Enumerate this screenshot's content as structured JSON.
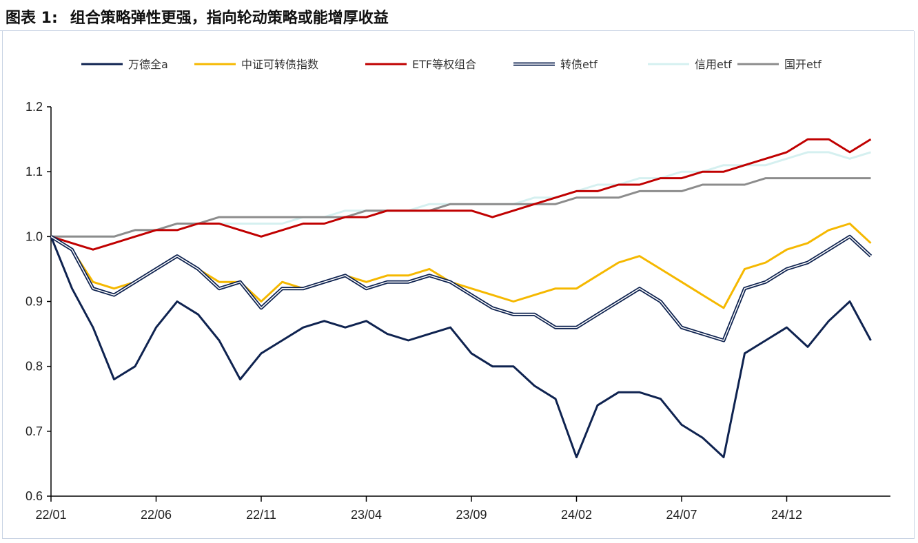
{
  "figure": {
    "label": "图表 1:",
    "title": "组合策略弹性更强，指向轮动策略或能增厚收益"
  },
  "chart_data": {
    "type": "line",
    "title": "组合策略弹性更强，指向轮动策略或能增厚收益",
    "xlabel": "",
    "ylabel": "",
    "x_ticks": [
      "22/01",
      "22/06",
      "22/11",
      "23/04",
      "23/09",
      "24/02",
      "24/07",
      "24/12"
    ],
    "ylim": [
      0.6,
      1.2
    ],
    "y_ticks": [
      0.6,
      0.7,
      0.8,
      0.9,
      1.0,
      1.1,
      1.2
    ],
    "y_tick_labels": [
      "0.6",
      "0.7",
      "0.8",
      "0.9",
      "1.0",
      "1.1",
      "1.2"
    ],
    "grid": false,
    "legend_position": "top",
    "x_months": [
      "22/01",
      "22/02",
      "22/03",
      "22/04",
      "22/05",
      "22/06",
      "22/07",
      "22/08",
      "22/09",
      "22/10",
      "22/11",
      "22/12",
      "23/01",
      "23/02",
      "23/03",
      "23/04",
      "23/05",
      "23/06",
      "23/07",
      "23/08",
      "23/09",
      "23/10",
      "23/11",
      "23/12",
      "24/01",
      "24/02",
      "24/03",
      "24/04",
      "24/05",
      "24/06",
      "24/07",
      "24/08",
      "24/09",
      "24/10",
      "24/11",
      "24/12",
      "25/01",
      "25/02",
      "25/03",
      "25/04"
    ],
    "series": [
      {
        "name": "万德全a",
        "color": "#0f2350",
        "style": "solid",
        "values": [
          1.0,
          0.92,
          0.86,
          0.78,
          0.8,
          0.86,
          0.9,
          0.88,
          0.84,
          0.78,
          0.82,
          0.84,
          0.86,
          0.87,
          0.86,
          0.87,
          0.85,
          0.84,
          0.85,
          0.86,
          0.82,
          0.8,
          0.8,
          0.77,
          0.75,
          0.66,
          0.74,
          0.76,
          0.76,
          0.75,
          0.71,
          0.69,
          0.66,
          0.82,
          0.84,
          0.86,
          0.83,
          0.87,
          0.9,
          0.84
        ]
      },
      {
        "name": "中证可转债指数",
        "color": "#f5b800",
        "style": "solid",
        "values": [
          1.0,
          0.98,
          0.93,
          0.92,
          0.93,
          0.95,
          0.97,
          0.95,
          0.93,
          0.93,
          0.9,
          0.93,
          0.92,
          0.93,
          0.94,
          0.93,
          0.94,
          0.94,
          0.95,
          0.93,
          0.92,
          0.91,
          0.9,
          0.91,
          0.92,
          0.92,
          0.94,
          0.96,
          0.97,
          0.95,
          0.93,
          0.91,
          0.89,
          0.95,
          0.96,
          0.98,
          0.99,
          1.01,
          1.02,
          0.99
        ]
      },
      {
        "name": "ETF等权组合",
        "color": "#c00000",
        "style": "solid",
        "values": [
          1.0,
          0.99,
          0.98,
          0.99,
          1.0,
          1.01,
          1.01,
          1.02,
          1.02,
          1.01,
          1.0,
          1.01,
          1.02,
          1.02,
          1.03,
          1.03,
          1.04,
          1.04,
          1.04,
          1.04,
          1.04,
          1.03,
          1.04,
          1.05,
          1.06,
          1.07,
          1.07,
          1.08,
          1.08,
          1.09,
          1.09,
          1.1,
          1.1,
          1.11,
          1.12,
          1.13,
          1.15,
          1.15,
          1.13,
          1.15
        ]
      },
      {
        "name": "转债etf",
        "color": "#0f2350",
        "style": "double",
        "values": [
          1.0,
          0.98,
          0.92,
          0.91,
          0.93,
          0.95,
          0.97,
          0.95,
          0.92,
          0.93,
          0.89,
          0.92,
          0.92,
          0.93,
          0.94,
          0.92,
          0.93,
          0.93,
          0.94,
          0.93,
          0.91,
          0.89,
          0.88,
          0.88,
          0.86,
          0.86,
          0.88,
          0.9,
          0.92,
          0.9,
          0.86,
          0.85,
          0.84,
          0.92,
          0.93,
          0.95,
          0.96,
          0.98,
          1.0,
          0.97
        ]
      },
      {
        "name": "信用etf",
        "color": "#d5f0f0",
        "style": "solid",
        "values": [
          1.0,
          1.0,
          1.0,
          1.0,
          1.01,
          1.01,
          1.02,
          1.02,
          1.02,
          1.02,
          1.02,
          1.02,
          1.03,
          1.03,
          1.04,
          1.04,
          1.04,
          1.04,
          1.05,
          1.05,
          1.05,
          1.05,
          1.05,
          1.06,
          1.06,
          1.07,
          1.08,
          1.08,
          1.09,
          1.09,
          1.1,
          1.1,
          1.11,
          1.11,
          1.11,
          1.12,
          1.13,
          1.13,
          1.12,
          1.13
        ]
      },
      {
        "name": "国开etf",
        "color": "#8c8c8c",
        "style": "solid",
        "values": [
          1.0,
          1.0,
          1.0,
          1.0,
          1.01,
          1.01,
          1.02,
          1.02,
          1.03,
          1.03,
          1.03,
          1.03,
          1.03,
          1.03,
          1.03,
          1.04,
          1.04,
          1.04,
          1.04,
          1.05,
          1.05,
          1.05,
          1.05,
          1.05,
          1.05,
          1.06,
          1.06,
          1.06,
          1.07,
          1.07,
          1.07,
          1.08,
          1.08,
          1.08,
          1.09,
          1.09,
          1.09,
          1.09,
          1.09,
          1.09
        ]
      }
    ]
  }
}
